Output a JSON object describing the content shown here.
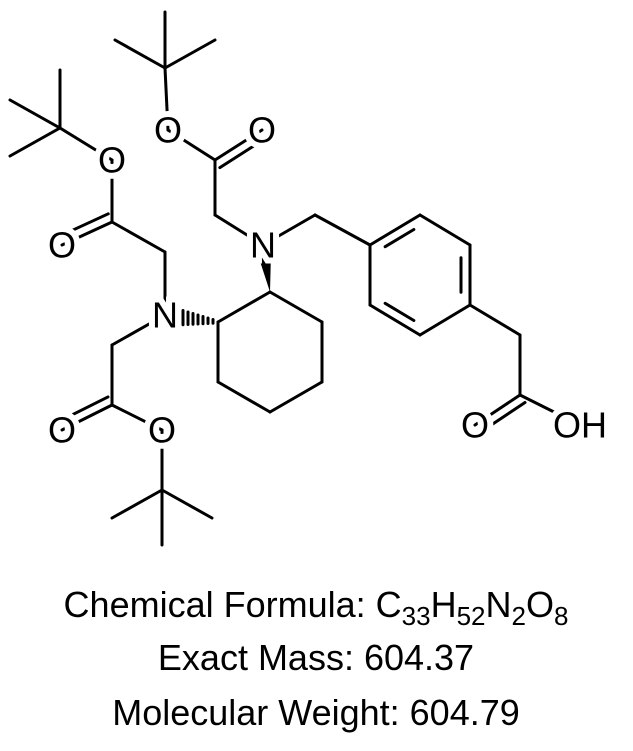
{
  "atoms": [
    {
      "label": "O"
    },
    {
      "label": "O"
    },
    {
      "label": "N"
    },
    {
      "label": "O"
    },
    {
      "label": "O"
    },
    {
      "label": "N"
    },
    {
      "label": "O"
    },
    {
      "label": "O"
    },
    {
      "label": "O"
    },
    {
      "label": "OH"
    }
  ],
  "formula": {
    "label": "Chemical Formula:",
    "parts": [
      "C",
      "33",
      "H",
      "52",
      "N",
      "2",
      "O",
      "8"
    ]
  },
  "exact_mass": "Exact Mass: 604.37",
  "molecular_weight": "Molecular Weight: 604.79"
}
